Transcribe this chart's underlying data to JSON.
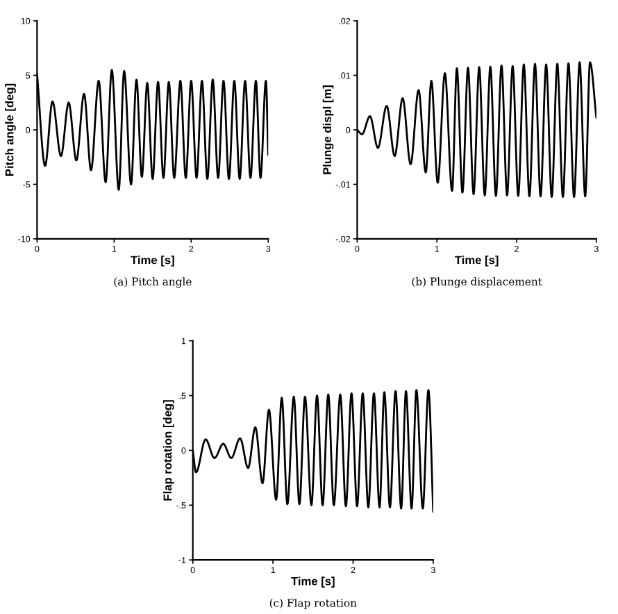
{
  "chart_data": [
    {
      "type": "line",
      "xlabel": "Time [s]",
      "ylabel": "Pitch angle [deg]",
      "annotations": [
        "(a) Pitch angle"
      ],
      "xlim": [
        0,
        3
      ],
      "xticks": [
        0,
        1,
        2,
        3
      ],
      "ylim": [
        -10,
        10
      ],
      "yticks": [
        -10,
        -5,
        0,
        5,
        10
      ],
      "color": "#000000",
      "x": [
        0,
        0.104,
        0.2,
        0.31,
        0.41,
        0.51,
        0.61,
        0.7,
        0.8,
        0.89,
        0.97,
        1.06,
        1.13,
        1.22,
        1.29,
        1.36,
        1.43,
        1.5,
        1.57,
        1.64,
        1.71,
        1.78,
        1.86,
        1.93,
        2.0,
        2.07,
        2.14,
        2.21,
        2.28,
        2.35,
        2.42,
        2.49,
        2.56,
        2.63,
        2.7,
        2.77,
        2.84,
        2.9,
        2.97,
        3.0
      ],
      "values": [
        5.1,
        -3.3,
        2.6,
        -2.4,
        2.5,
        -2.8,
        3.3,
        -3.7,
        4.5,
        -4.8,
        5.5,
        -5.5,
        5.4,
        -5.0,
        4.6,
        -4.3,
        4.3,
        -4.5,
        4.4,
        -4.4,
        4.4,
        -4.4,
        4.5,
        -4.4,
        4.5,
        -4.4,
        4.5,
        -4.5,
        4.6,
        -4.4,
        4.5,
        -4.5,
        4.5,
        -4.5,
        4.5,
        -4.4,
        4.5,
        -4.4,
        4.5,
        -2.3
      ]
    },
    {
      "type": "line",
      "xlabel": "Time [s]",
      "ylabel": "Plunge displ [m]",
      "annotations": [
        "(b) Plunge displacement"
      ],
      "xlim": [
        0,
        3
      ],
      "xticks": [
        0,
        1,
        2,
        3
      ],
      "ylim": [
        -0.02,
        0.02
      ],
      "yticks": [
        {
          "value": -0.02,
          "label": "-.02"
        },
        {
          "value": -0.01,
          "label": "-.01"
        },
        0,
        {
          "value": 0.01,
          "label": ".01"
        },
        {
          "value": 0.02,
          "label": ".02"
        }
      ],
      "color": "#000000",
      "x": [
        0,
        0.06,
        0.16,
        0.26,
        0.37,
        0.47,
        0.57,
        0.67,
        0.77,
        0.86,
        0.93,
        1.01,
        1.1,
        1.19,
        1.25,
        1.32,
        1.39,
        1.46,
        1.53,
        1.6,
        1.67,
        1.74,
        1.81,
        1.88,
        1.95,
        2.02,
        2.09,
        2.16,
        2.23,
        2.3,
        2.37,
        2.44,
        2.51,
        2.58,
        2.65,
        2.72,
        2.79,
        2.86,
        2.92,
        3.0
      ],
      "values": [
        0,
        -0.0008,
        0.0025,
        -0.0033,
        0.0044,
        -0.0048,
        0.0058,
        -0.0063,
        0.0073,
        -0.0078,
        0.009,
        -0.0097,
        0.0104,
        -0.0112,
        0.0113,
        -0.0115,
        0.0114,
        -0.0118,
        0.0115,
        -0.012,
        0.0116,
        -0.0121,
        0.0118,
        -0.012,
        0.0117,
        -0.0121,
        0.012,
        -0.0122,
        0.0121,
        -0.0122,
        0.012,
        -0.0123,
        0.0121,
        -0.0123,
        0.0122,
        -0.0123,
        0.0124,
        -0.0122,
        0.0124,
        0.0022
      ]
    },
    {
      "type": "line",
      "xlabel": "Time [s]",
      "ylabel": "Flap rotation [deg]",
      "annotations": [
        "(c) Flap rotation"
      ],
      "xlim": [
        0,
        3
      ],
      "xticks": [
        0,
        1,
        2,
        3
      ],
      "ylim": [
        -1,
        1
      ],
      "yticks": [
        -1,
        {
          "value": -0.5,
          "label": "-.5"
        },
        0,
        {
          "value": 0.5,
          "label": ".5"
        },
        1
      ],
      "color": "#000000",
      "x": [
        0,
        0.04,
        0.16,
        0.27,
        0.38,
        0.48,
        0.59,
        0.69,
        0.78,
        0.87,
        0.95,
        1.04,
        1.11,
        1.18,
        1.26,
        1.33,
        1.4,
        1.48,
        1.55,
        1.62,
        1.69,
        1.76,
        1.84,
        1.91,
        1.98,
        2.05,
        2.12,
        2.19,
        2.26,
        2.33,
        2.39,
        2.46,
        2.53,
        2.6,
        2.66,
        2.73,
        2.79,
        2.87,
        2.94,
        3.0
      ],
      "values": [
        0,
        -0.2,
        0.1,
        -0.07,
        0.06,
        -0.07,
        0.11,
        -0.16,
        0.21,
        -0.3,
        0.37,
        -0.45,
        0.48,
        -0.49,
        0.49,
        -0.49,
        0.49,
        -0.5,
        0.5,
        -0.5,
        0.51,
        -0.5,
        0.51,
        -0.51,
        0.52,
        -0.51,
        0.52,
        -0.52,
        0.52,
        -0.52,
        0.53,
        -0.52,
        0.54,
        -0.53,
        0.54,
        -0.53,
        0.55,
        -0.53,
        0.55,
        -0.56
      ]
    }
  ]
}
